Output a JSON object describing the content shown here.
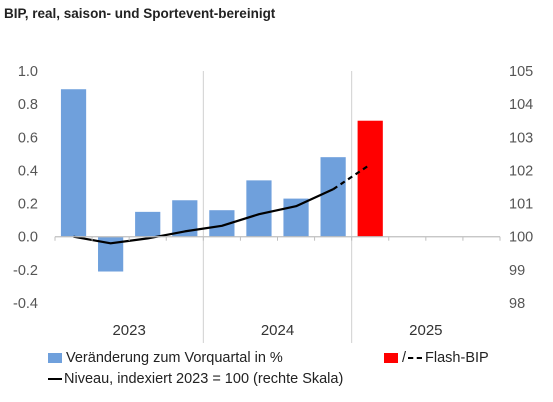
{
  "title": "BIP, real, saison- und Sportevent-bereinigt",
  "chart_data": {
    "type": "bar",
    "title": "BIP, real, saison- und Sportevent-bereinigt",
    "left_axis": {
      "ylim": [
        -0.4,
        1.0
      ],
      "ticks": [
        "1.0",
        "0.8",
        "0.6",
        "0.4",
        "0.2",
        "0.0",
        "-0.2",
        "-0.4"
      ]
    },
    "right_axis": {
      "ylim": [
        98,
        105
      ],
      "ticks": [
        "105",
        "104",
        "103",
        "102",
        "101",
        "100",
        "99",
        "98"
      ]
    },
    "years": [
      "2023",
      "2024",
      "2025"
    ],
    "slots_per_year": 4,
    "series": [
      {
        "name": "Veränderung zum Vorquartal in %",
        "axis": "left",
        "kind": "bar",
        "color": "#6fa0dc",
        "values": [
          0.89,
          -0.21,
          0.15,
          0.22,
          0.16,
          0.34,
          0.23,
          0.48
        ]
      },
      {
        "name": "Flash-BIP",
        "axis": "left",
        "kind": "bar",
        "color": "#ff0000",
        "slot": 8,
        "value": 0.7
      },
      {
        "name": "Niveau, indexiert 2023 = 100 (rechte Skala)",
        "axis": "right",
        "kind": "line",
        "color": "#000000",
        "values": [
          100.0,
          99.8,
          99.95,
          100.16,
          100.33,
          100.68,
          100.92,
          101.43
        ]
      },
      {
        "name": "Flash-BIP",
        "axis": "right",
        "kind": "dashed-line",
        "color": "#000000",
        "start_slot": 7,
        "values": [
          101.43,
          102.18
        ]
      }
    ],
    "grid": {
      "vertical_year_separators": true,
      "horizontal": false
    }
  },
  "legend": {
    "bars_label": "Veränderung zum Vorquartal in %",
    "flash_label": "Flash-BIP",
    "flash_sep": "/",
    "line_label": "Niveau, indexiert 2023 = 100 (rechte Skala)"
  }
}
